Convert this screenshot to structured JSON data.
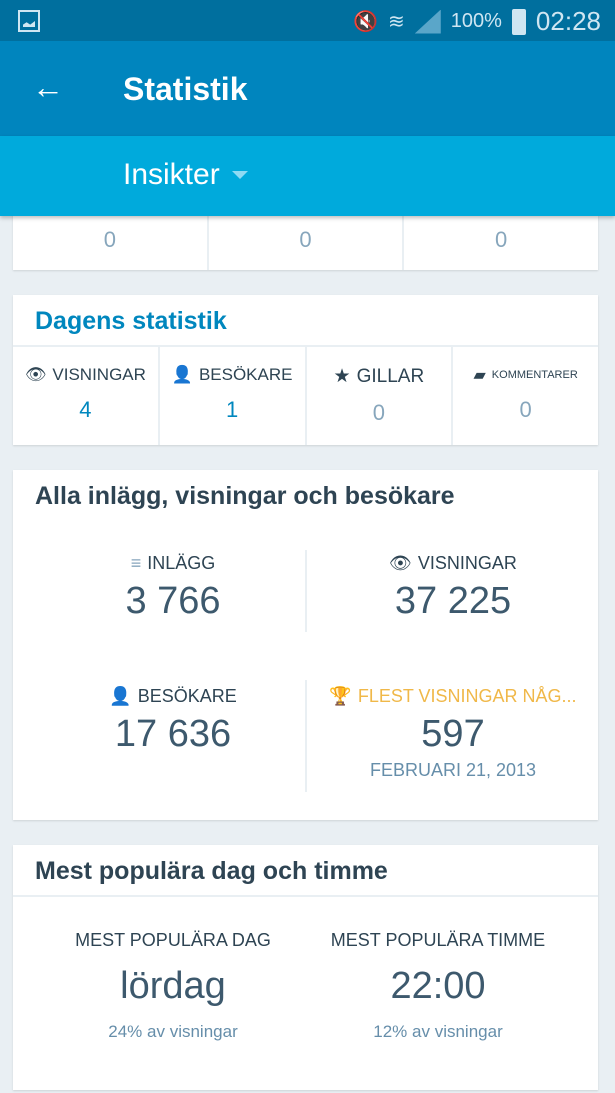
{
  "status_bar": {
    "battery": "100%",
    "time": "02:28"
  },
  "toolbar": {
    "title": "Statistik"
  },
  "tabbar": {
    "selected": "Insikter"
  },
  "top_card": {
    "values": [
      "0",
      "0",
      "0"
    ]
  },
  "today": {
    "title": "Dagens statistik",
    "items": [
      {
        "label": "VISNINGAR",
        "value": "4",
        "icon": "eye-icon"
      },
      {
        "label": "BESÖKARE",
        "value": "1",
        "icon": "person-icon"
      },
      {
        "label": "GILLAR",
        "value": "0",
        "icon": "star-icon"
      },
      {
        "label": "KOMMENTARER",
        "value": "0",
        "icon": "comment-icon"
      }
    ]
  },
  "all": {
    "title": "Alla inlägg, visningar och besökare",
    "posts": {
      "label": "INLÄGG",
      "value": "3 766"
    },
    "views": {
      "label": "VISNINGAR",
      "value": "37 225"
    },
    "visitors": {
      "label": "BESÖKARE",
      "value": "17 636"
    },
    "best": {
      "label": "FLEST VISNINGAR NÅG...",
      "value": "597",
      "date": "FEBRUARI 21, 2013",
      "color": "#f0b849"
    }
  },
  "popular": {
    "title": "Mest populära dag och timme",
    "day": {
      "label": "MEST POPULÄRA DAG",
      "value": "lördag",
      "sub": "24% av visningar"
    },
    "hour": {
      "label": "MEST POPULÄRA TIMME",
      "value": "22:00",
      "sub": "12% av visningar"
    }
  }
}
